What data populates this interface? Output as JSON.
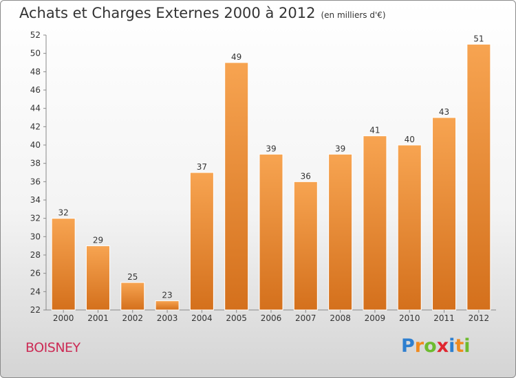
{
  "header": {
    "title": "Achats et Charges Externes 2000 à 2012",
    "unit": "(en milliers d'€)"
  },
  "footer": {
    "commune": "BOISNEY",
    "logo_letters": [
      {
        "char": "P",
        "color": "#2e7fcf"
      },
      {
        "char": "r",
        "color": "#f08a1e"
      },
      {
        "char": "o",
        "color": "#6dbb2f"
      },
      {
        "char": "x",
        "color": "#e0262f"
      },
      {
        "char": "i",
        "color": "#2e7fcf"
      },
      {
        "char": "t",
        "color": "#f08a1e"
      },
      {
        "char": "i",
        "color": "#6dbb2f"
      }
    ]
  },
  "chart_data": {
    "type": "bar",
    "categories": [
      "2000",
      "2001",
      "2002",
      "2003",
      "2004",
      "2005",
      "2006",
      "2007",
      "2008",
      "2009",
      "2010",
      "2011",
      "2012"
    ],
    "values": [
      32,
      29,
      25,
      23,
      37,
      49,
      39,
      36,
      39,
      41,
      40,
      43,
      51
    ],
    "title": "Achats et Charges Externes 2000 à 2012",
    "unit": "(en milliers d'€)",
    "xlabel": "",
    "ylabel": "",
    "ylim": [
      22,
      52
    ],
    "ytick_step": 2,
    "grid": false,
    "bar_color": "#f29b45",
    "bar_color_dark": "#d9731d"
  }
}
